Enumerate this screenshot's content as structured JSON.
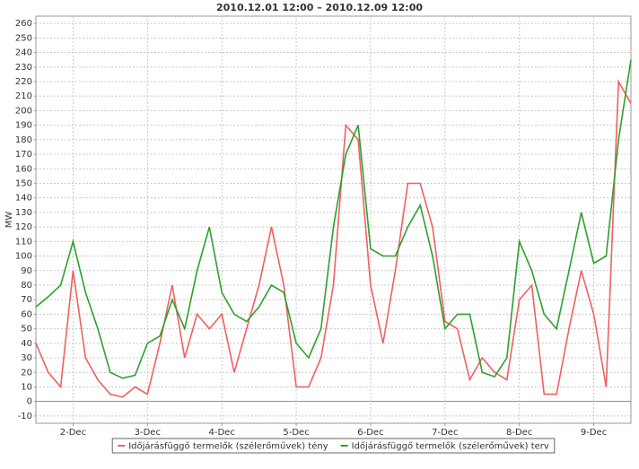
{
  "chart_data": {
    "type": "line",
    "title": "2010.12.01 12:00 – 2010.12.09 12:00",
    "y_label": "MW",
    "x": [
      1.5,
      1.667,
      1.833,
      2.0,
      2.167,
      2.333,
      2.5,
      2.667,
      2.833,
      3.0,
      3.167,
      3.333,
      3.5,
      3.667,
      3.833,
      4.0,
      4.167,
      4.333,
      4.5,
      4.667,
      4.833,
      5.0,
      5.167,
      5.333,
      5.5,
      5.667,
      5.833,
      6.0,
      6.167,
      6.333,
      6.5,
      6.667,
      6.833,
      7.0,
      7.167,
      7.333,
      7.5,
      7.667,
      7.833,
      8.0,
      8.167,
      8.333,
      8.5,
      8.667,
      8.833,
      9.0,
      9.167,
      9.333,
      9.5
    ],
    "xlim": [
      1.5,
      9.5
    ],
    "xticks": [
      {
        "value": 2,
        "label": "2-Dec"
      },
      {
        "value": 3,
        "label": "3-Dec"
      },
      {
        "value": 4,
        "label": "4-Dec"
      },
      {
        "value": 5,
        "label": "5-Dec"
      },
      {
        "value": 6,
        "label": "6-Dec"
      },
      {
        "value": 7,
        "label": "7-Dec"
      },
      {
        "value": 8,
        "label": "8-Dec"
      },
      {
        "value": 9,
        "label": "9-Dec"
      }
    ],
    "ylim": [
      -15,
      265
    ],
    "yticks": [
      -10,
      0,
      10,
      20,
      30,
      40,
      50,
      60,
      70,
      80,
      90,
      100,
      110,
      120,
      130,
      140,
      150,
      160,
      170,
      180,
      190,
      200,
      210,
      220,
      230,
      240,
      250,
      260
    ],
    "grid": true,
    "legend": "bottom",
    "series": [
      {
        "name": "Időjárásfüggő termelők (szélerőművek) tény",
        "color": "#f06060",
        "values": [
          40,
          20,
          10,
          90,
          30,
          15,
          5,
          3,
          10,
          5,
          40,
          80,
          30,
          60,
          50,
          60,
          20,
          50,
          80,
          120,
          80,
          10,
          10,
          30,
          80,
          190,
          180,
          80,
          40,
          90,
          150,
          150,
          120,
          55,
          50,
          15,
          30,
          20,
          15,
          70,
          80,
          5,
          5,
          50,
          90,
          60,
          10,
          220,
          205
        ]
      },
      {
        "name": "Időjárásfüggő termelők (szélerőművek) terv",
        "color": "#2ea02e",
        "values": [
          65,
          72,
          80,
          110,
          75,
          50,
          20,
          16,
          18,
          40,
          45,
          70,
          50,
          90,
          120,
          75,
          60,
          55,
          65,
          80,
          75,
          40,
          30,
          50,
          120,
          170,
          190,
          105,
          100,
          100,
          120,
          135,
          100,
          50,
          60,
          60,
          20,
          17,
          30,
          110,
          90,
          60,
          50,
          90,
          130,
          95,
          100,
          180,
          235
        ]
      }
    ]
  }
}
